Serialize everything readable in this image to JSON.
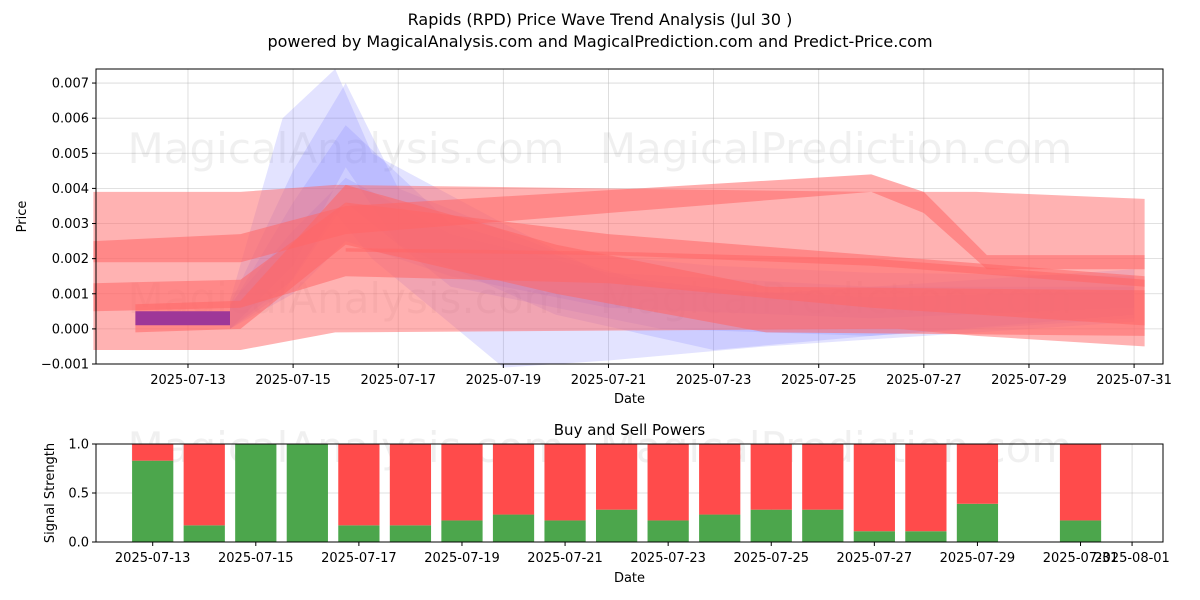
{
  "title": "Rapids (RPD) Price Wave Trend Analysis (Jul 30 )",
  "subtitle": "powered by MagicalAnalysis.com and MagicalPrediction.com and Predict-Price.com",
  "watermarks": [
    "MagicalAnalysis.com",
    "MagicalPrediction.com"
  ],
  "colors": {
    "sell": "#ff4b4b",
    "buy": "#4ca64c",
    "wave_red": "#ff6666",
    "wave_blue": "#8080ff",
    "purple": "#993399"
  },
  "chart_data": [
    {
      "type": "area",
      "ylabel": "Price",
      "xlabel": "Date",
      "xlim": [
        "2025-07-11",
        "2025-07-31"
      ],
      "ylim": [
        -0.001,
        0.0074
      ],
      "x_ticks": [
        "2025-07-13",
        "2025-07-15",
        "2025-07-17",
        "2025-07-19",
        "2025-07-21",
        "2025-07-23",
        "2025-07-25",
        "2025-07-27",
        "2025-07-29",
        "2025-07-31"
      ],
      "y_ticks": [
        "−0.001",
        "0.000",
        "0.001",
        "0.002",
        "0.003",
        "0.004",
        "0.005",
        "0.006",
        "0.007"
      ],
      "y_tick_values": [
        -0.001,
        0,
        0.001,
        0.002,
        0.003,
        0.004,
        0.005,
        0.006,
        0.007
      ],
      "grid": true,
      "actual_price": {
        "x": [
          "2025-07-12",
          "2025-07-13",
          "2025-07-13.8"
        ],
        "y": [
          0.0003,
          0.0003,
          0.0003
        ]
      },
      "red_bands": [
        {
          "x": [
            "2025-07-11.2",
            "2025-07-14",
            "2025-07-15.8",
            "2025-07-26",
            "2025-07-26.5",
            "2025-07-28",
            "2025-07-31.2"
          ],
          "upper": [
            0.0039,
            0.0039,
            0.0041,
            0.0039,
            0.0039,
            0.0039,
            0.0037
          ],
          "lower": [
            -0.0006,
            -0.0006,
            -0.0001,
            0.0,
            0.0,
            -0.0002,
            -0.0005
          ]
        },
        {
          "x": [
            "2025-07-11.2",
            "2025-07-14",
            "2025-07-16",
            "2025-07-26",
            "2025-07-27",
            "2025-07-28.2",
            "2025-07-31.2"
          ],
          "upper": [
            0.0025,
            0.0027,
            0.0035,
            0.0044,
            0.0039,
            0.0021,
            0.0021
          ],
          "lower": [
            0.0019,
            0.0019,
            0.0027,
            0.0039,
            0.0033,
            0.0017,
            0.0017
          ]
        },
        {
          "x": [
            "2025-07-11.2",
            "2025-07-14",
            "2025-07-16",
            "2025-07-21",
            "2025-07-26",
            "2025-07-31.2"
          ],
          "upper": [
            0.0013,
            0.0014,
            0.0036,
            0.0027,
            0.0021,
            0.0015
          ],
          "lower": [
            0.0005,
            0.0006,
            0.0015,
            0.0013,
            0.0006,
            0.0001
          ]
        },
        {
          "x": [
            "2025-07-12",
            "2025-07-14",
            "2025-07-16",
            "2025-07-20",
            "2025-07-24",
            "2025-07-31.2"
          ],
          "upper": [
            0.0007,
            0.0008,
            0.0041,
            0.0024,
            0.0012,
            0.0011
          ],
          "lower": [
            -0.0001,
            0.0,
            0.0024,
            0.001,
            -0.0001,
            -0.0002
          ]
        },
        {
          "x": [
            "2025-07-16",
            "2025-07-21",
            "2025-07-26",
            "2025-07-31.2"
          ],
          "upper": [
            0.0023,
            0.0022,
            0.002,
            0.0014
          ],
          "lower": [
            0.0022,
            0.0021,
            0.0018,
            0.0012
          ]
        }
      ],
      "blue_bands": [
        {
          "x": [
            "2025-07-13.8",
            "2025-07-14.8",
            "2025-07-15.8",
            "2025-07-16.5",
            "2025-07-19",
            "2025-07-21",
            "2025-07-24",
            "2025-07-31"
          ],
          "upper": [
            0.0008,
            0.006,
            0.0074,
            0.005,
            0.003,
            0.0015,
            0.001,
            0.0017
          ],
          "lower": [
            0.0,
            0.001,
            0.0033,
            0.002,
            -0.0011,
            -0.0009,
            -0.0005,
            0.0002
          ]
        },
        {
          "x": [
            "2025-07-13.8",
            "2025-07-15",
            "2025-07-16",
            "2025-07-17",
            "2025-07-20",
            "2025-07-23",
            "2025-07-26",
            "2025-07-31"
          ],
          "upper": [
            0.0007,
            0.0045,
            0.007,
            0.004,
            0.0022,
            0.0018,
            0.0016,
            0.0015
          ],
          "lower": [
            0.0,
            0.0018,
            0.0046,
            0.0024,
            0.0004,
            -0.0006,
            -0.0002,
            0.0004
          ]
        },
        {
          "x": [
            "2025-07-13.8",
            "2025-07-15",
            "2025-07-16",
            "2025-07-18",
            "2025-07-22",
            "2025-07-26",
            "2025-07-31"
          ],
          "upper": [
            0.0006,
            0.0036,
            0.0058,
            0.003,
            0.0012,
            0.0009,
            0.0011
          ],
          "lower": [
            0.0,
            0.0014,
            0.0036,
            0.0012,
            0.0,
            -0.0002,
            0.0003
          ]
        },
        {
          "x": [
            "2025-07-13.8",
            "2025-07-15",
            "2025-07-16",
            "2025-07-18",
            "2025-07-21",
            "2025-07-26",
            "2025-07-31"
          ],
          "upper": [
            0.0007,
            0.0028,
            0.0043,
            0.0027,
            0.0016,
            0.0012,
            0.0012
          ],
          "lower": [
            0.0,
            0.001,
            0.0025,
            0.0015,
            0.0006,
            0.0003,
            0.0006
          ]
        }
      ]
    },
    {
      "type": "bar",
      "title": "Buy and Sell Powers",
      "ylabel": "Signal Strength",
      "xlabel": "Date",
      "xlim": [
        "2025-07-12",
        "2025-08-01.6"
      ],
      "ylim": [
        0,
        1.0
      ],
      "x_ticks": [
        "2025-07-13",
        "2025-07-15",
        "2025-07-17",
        "2025-07-19",
        "2025-07-21",
        "2025-07-23",
        "2025-07-25",
        "2025-07-27",
        "2025-07-29",
        "2025-07-31",
        "2025-08-01"
      ],
      "y_ticks": [
        "0.0",
        "0.5",
        "1.0"
      ],
      "y_tick_values": [
        0,
        0.5,
        1.0
      ],
      "grid": true,
      "categories": [
        "2025-07-13",
        "2025-07-14",
        "2025-07-15",
        "2025-07-16",
        "2025-07-17",
        "2025-07-18",
        "2025-07-19",
        "2025-07-20",
        "2025-07-21",
        "2025-07-22",
        "2025-07-23",
        "2025-07-24",
        "2025-07-25",
        "2025-07-26",
        "2025-07-27",
        "2025-07-28",
        "2025-07-29",
        "2025-07-31"
      ],
      "series": [
        {
          "values": [
            0.83,
            0.17,
            1.0,
            1.0,
            0.17,
            0.17,
            0.22,
            0.28,
            0.22,
            0.33,
            0.22,
            0.28,
            0.33,
            0.33,
            0.11,
            0.11,
            0.39,
            0.22
          ]
        },
        {
          "values": [
            0.17,
            0.83,
            0.0,
            0.0,
            0.83,
            0.83,
            0.78,
            0.72,
            0.78,
            0.67,
            0.78,
            0.72,
            0.67,
            0.67,
            0.89,
            0.89,
            0.61,
            0.78
          ]
        }
      ]
    }
  ]
}
